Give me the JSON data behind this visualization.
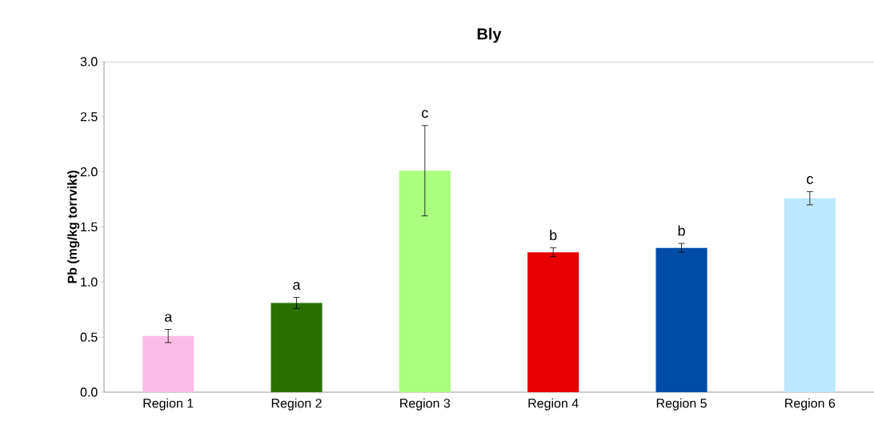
{
  "chart_data": {
    "type": "bar",
    "title": "Bly",
    "ylabel": "Pb (mg/kg torrvikt)",
    "categories": [
      "Region 1",
      "Region 2",
      "Region 3",
      "Region 4",
      "Region 5",
      "Region 6"
    ],
    "values": [
      0.51,
      0.81,
      2.01,
      1.27,
      1.31,
      1.76
    ],
    "errors": [
      0.06,
      0.05,
      0.41,
      0.04,
      0.04,
      0.06
    ],
    "colors": [
      "#fbbde6",
      "#2a7000",
      "#aaff80",
      "#e60000",
      "#004da8",
      "#bee8ff"
    ],
    "ylim": [
      0,
      3
    ],
    "yticks": [
      {
        "value": 0,
        "label": "0.0"
      },
      {
        "value": 0.5,
        "label": "0.5"
      },
      {
        "value": 1,
        "label": "1.0"
      },
      {
        "value": 1.5,
        "label": "1.5"
      },
      {
        "value": 2,
        "label": "2.0"
      },
      {
        "value": 2.5,
        "label": "2.5"
      },
      {
        "value": 3,
        "label": "3.0"
      }
    ],
    "grid": false,
    "annotations": [
      "a",
      "a",
      "c",
      "b",
      "b",
      "c"
    ]
  }
}
